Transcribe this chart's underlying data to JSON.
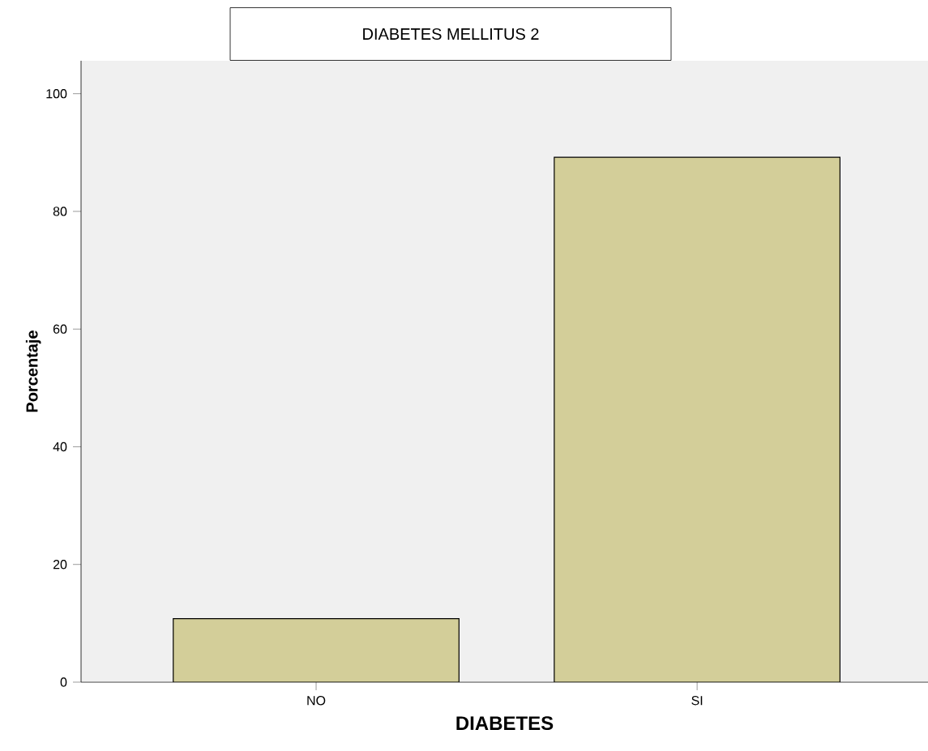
{
  "chart_data": {
    "type": "bar",
    "title": "DIABETES MELLITUS 2",
    "xlabel": "DIABETES",
    "ylabel": "Porcentaje",
    "categories": [
      "NO",
      "SI"
    ],
    "values": [
      10.8,
      89.2
    ],
    "color": "#d3ce99",
    "ylim": [
      0,
      105.6
    ],
    "yticks": [
      0,
      20,
      40,
      60,
      80,
      100
    ]
  }
}
